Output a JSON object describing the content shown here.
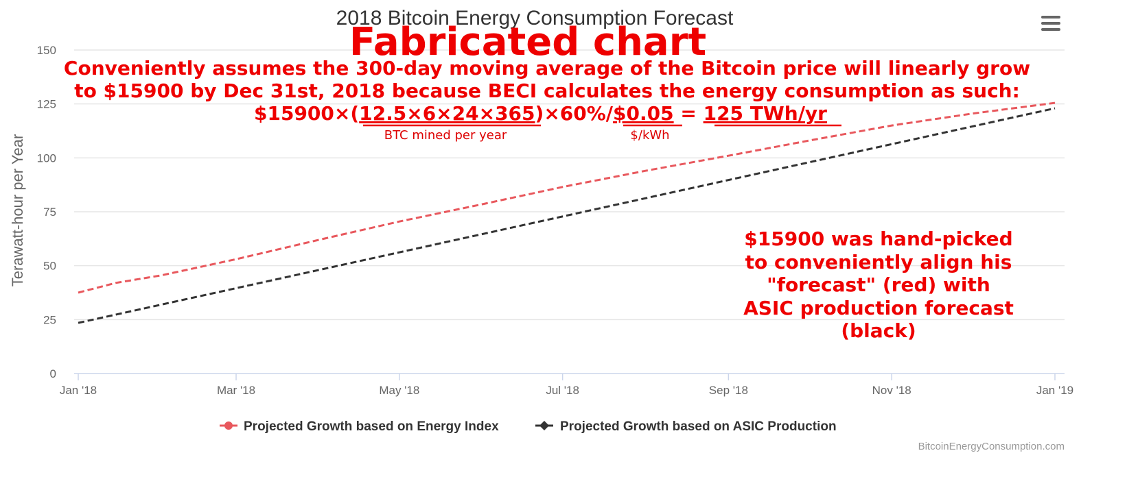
{
  "chart_data": {
    "type": "line",
    "title": "2018 Bitcoin Energy Consumption Forecast",
    "xlabel": "",
    "ylabel": "Terawatt-hour per Year",
    "ylim": [
      0,
      150
    ],
    "y_ticks": [
      0,
      25,
      50,
      75,
      100,
      125,
      150
    ],
    "x_ticks": [
      "Jan '18",
      "Mar '18",
      "May '18",
      "Jul '18",
      "Sep '18",
      "Nov '18",
      "Jan '19"
    ],
    "x_tick_days": [
      0,
      59,
      120,
      181,
      243,
      304,
      365
    ],
    "grid": true,
    "legend_position": "bottom",
    "series": [
      {
        "name": "Projected Growth based on Energy Index",
        "color": "#e8585d",
        "x": [
          "2018-01-01",
          "2018-01-15",
          "2018-02-01",
          "2018-03-01",
          "2018-04-01",
          "2018-05-01",
          "2018-06-01",
          "2018-07-01",
          "2018-08-01",
          "2018-09-01",
          "2018-10-01",
          "2018-11-01",
          "2018-12-01",
          "2019-01-01"
        ],
        "values": [
          37.5,
          42,
          45.5,
          53,
          62,
          70.5,
          78.5,
          86.5,
          94,
          101,
          108,
          115,
          120.5,
          125.5
        ]
      },
      {
        "name": "Projected Growth based on ASIC Production",
        "color": "#333333",
        "x": [
          "2018-01-01",
          "2019-01-01"
        ],
        "values": [
          23.5,
          123
        ]
      }
    ],
    "credit": "BitcoinEnergyConsumption.com"
  },
  "annotations": {
    "headline": "Fabricated chart",
    "line1": "Conveniently assumes the 300-day moving average of the Bitcoin price will linearly grow",
    "line2": "to $15900 by Dec 31st, 2018 because BECI calculates the energy consumption as such:",
    "formula": {
      "price": "$15900×(",
      "btc_expr": "12.5×6×24×365",
      "mid": ")×60%/",
      "cost": "$0.05",
      "eq": " = ",
      "result": "125 TWh/yr",
      "btc_note": "BTC mined per year",
      "cost_note": "$/kWh"
    },
    "side_note": [
      "$15900 was hand-picked",
      "to conveniently align his",
      "\"forecast\" (red) with",
      "ASIC production forecast",
      "(black)"
    ]
  },
  "ui": {
    "menu_icon": "hamburger-menu-icon"
  }
}
